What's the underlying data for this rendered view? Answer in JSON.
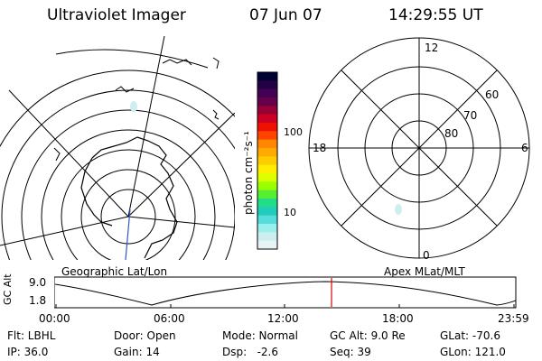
{
  "header": {
    "instrument": "Ultraviolet Imager",
    "date": "07 Jun 07",
    "time": "14:29:55 UT"
  },
  "colorbar": {
    "unit_label": "photon cm⁻²s⁻¹",
    "ticks": [
      "100",
      "10"
    ],
    "colors": [
      "#000033",
      "#220044",
      "#440055",
      "#66004a",
      "#990033",
      "#cc0022",
      "#ee1100",
      "#ff4400",
      "#ff8800",
      "#ffaa00",
      "#ffcc00",
      "#ffee00",
      "#ddff00",
      "#99ff00",
      "#55ee33",
      "#22dd88",
      "#22ccbb",
      "#55dddd",
      "#99eeee",
      "#cceeee",
      "#e8f4f4"
    ]
  },
  "right_map": {
    "mlt_labels": {
      "top": "12",
      "right": "6",
      "bottom": "0",
      "left": "18"
    },
    "lat_labels": [
      "60",
      "70",
      "80"
    ]
  },
  "map_captions": {
    "left": "Geographic Lat/Lon",
    "right": "Apex MLat/MLT"
  },
  "altitude_plot": {
    "ylabel": "GC Alt",
    "y_ticks": [
      "9.0",
      "1.8"
    ],
    "x_ticks": [
      "00:00",
      "06:00",
      "12:00",
      "18:00",
      "23:59"
    ],
    "marker_color": "#dd0000"
  },
  "info": {
    "filter": "Flt: LBHL",
    "ip": "IP: 36.0",
    "door": "Door: Open",
    "gain": "Gain: 14",
    "mode": "Mode: Normal",
    "dsp": "Dsp:   -2.6",
    "gc_alt": "GC Alt: 9.0 Re",
    "seq": "Seq: 39",
    "glat": "GLat: -70.6",
    "glon": "GLon: 121.0"
  }
}
